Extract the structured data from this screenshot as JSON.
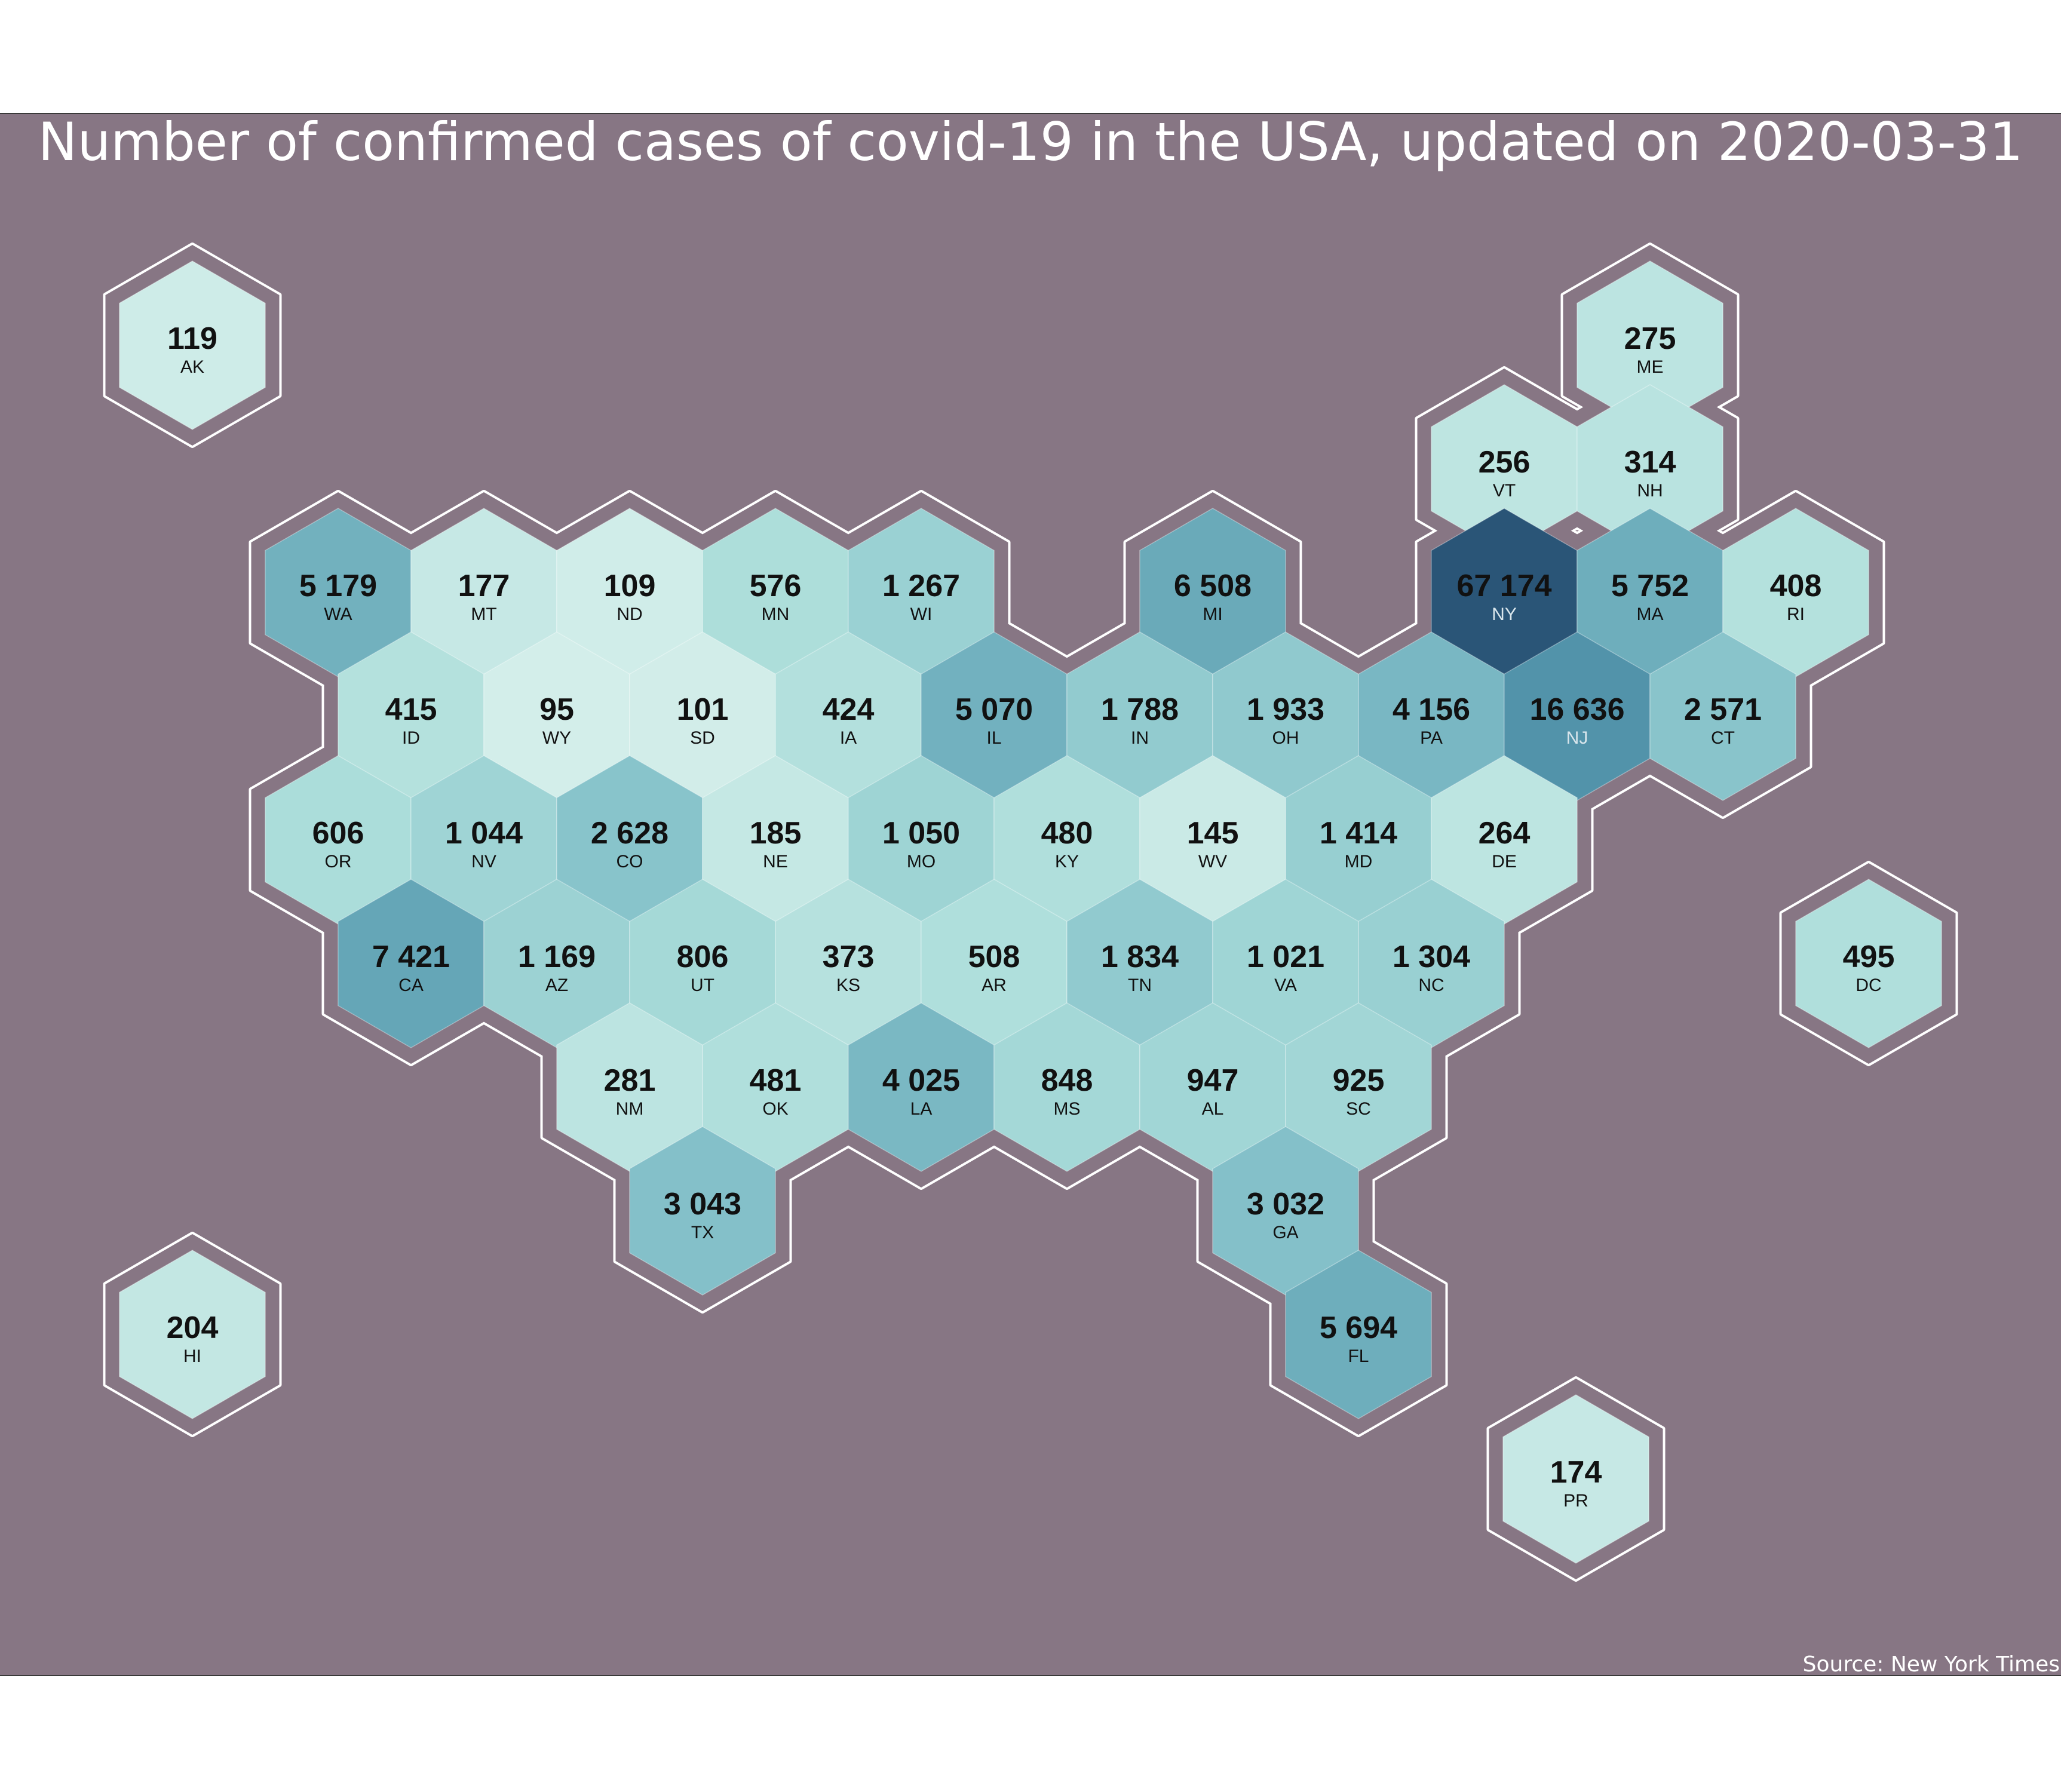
{
  "title": "Number of confirmed cases of covid-19 in the USA, updated on 2020-03-31",
  "source": "Source: New York Times",
  "colors": {
    "background": "#877684",
    "outline": "#ffffff",
    "scale_low": "#d3eeea",
    "scale_high": "#2a5577"
  },
  "map_data": {
    "type": "hexbin-map",
    "value_label": "confirmed cases",
    "states": [
      {
        "code": "AK",
        "value": 119,
        "label": "119"
      },
      {
        "code": "ME",
        "value": 275,
        "label": "275"
      },
      {
        "code": "VT",
        "value": 256,
        "label": "256"
      },
      {
        "code": "NH",
        "value": 314,
        "label": "314"
      },
      {
        "code": "WA",
        "value": 5179,
        "label": "5 179"
      },
      {
        "code": "MT",
        "value": 177,
        "label": "177"
      },
      {
        "code": "ND",
        "value": 109,
        "label": "109"
      },
      {
        "code": "MN",
        "value": 576,
        "label": "576"
      },
      {
        "code": "WI",
        "value": 1267,
        "label": "1 267"
      },
      {
        "code": "MI",
        "value": 6508,
        "label": "6 508"
      },
      {
        "code": "NY",
        "value": 67174,
        "label": "67 174"
      },
      {
        "code": "MA",
        "value": 5752,
        "label": "5 752"
      },
      {
        "code": "RI",
        "value": 408,
        "label": "408"
      },
      {
        "code": "ID",
        "value": 415,
        "label": "415"
      },
      {
        "code": "WY",
        "value": 95,
        "label": "95"
      },
      {
        "code": "SD",
        "value": 101,
        "label": "101"
      },
      {
        "code": "IA",
        "value": 424,
        "label": "424"
      },
      {
        "code": "IL",
        "value": 5070,
        "label": "5 070"
      },
      {
        "code": "IN",
        "value": 1788,
        "label": "1 788"
      },
      {
        "code": "OH",
        "value": 1933,
        "label": "1 933"
      },
      {
        "code": "PA",
        "value": 4156,
        "label": "4 156"
      },
      {
        "code": "NJ",
        "value": 16636,
        "label": "16 636"
      },
      {
        "code": "CT",
        "value": 2571,
        "label": "2 571"
      },
      {
        "code": "OR",
        "value": 606,
        "label": "606"
      },
      {
        "code": "NV",
        "value": 1044,
        "label": "1 044"
      },
      {
        "code": "CO",
        "value": 2628,
        "label": "2 628"
      },
      {
        "code": "NE",
        "value": 185,
        "label": "185"
      },
      {
        "code": "MO",
        "value": 1050,
        "label": "1 050"
      },
      {
        "code": "KY",
        "value": 480,
        "label": "480"
      },
      {
        "code": "WV",
        "value": 145,
        "label": "145"
      },
      {
        "code": "MD",
        "value": 1414,
        "label": "1 414"
      },
      {
        "code": "DE",
        "value": 264,
        "label": "264"
      },
      {
        "code": "CA",
        "value": 7421,
        "label": "7 421"
      },
      {
        "code": "AZ",
        "value": 1169,
        "label": "1 169"
      },
      {
        "code": "UT",
        "value": 806,
        "label": "806"
      },
      {
        "code": "KS",
        "value": 373,
        "label": "373"
      },
      {
        "code": "AR",
        "value": 508,
        "label": "508"
      },
      {
        "code": "TN",
        "value": 1834,
        "label": "1 834"
      },
      {
        "code": "VA",
        "value": 1021,
        "label": "1 021"
      },
      {
        "code": "NC",
        "value": 1304,
        "label": "1 304"
      },
      {
        "code": "DC",
        "value": 495,
        "label": "495"
      },
      {
        "code": "NM",
        "value": 281,
        "label": "281"
      },
      {
        "code": "OK",
        "value": 481,
        "label": "481"
      },
      {
        "code": "LA",
        "value": 4025,
        "label": "4 025"
      },
      {
        "code": "MS",
        "value": 848,
        "label": "848"
      },
      {
        "code": "AL",
        "value": 947,
        "label": "947"
      },
      {
        "code": "SC",
        "value": 925,
        "label": "925"
      },
      {
        "code": "TX",
        "value": 3043,
        "label": "3 043"
      },
      {
        "code": "GA",
        "value": 3032,
        "label": "3 032"
      },
      {
        "code": "HI",
        "value": 204,
        "label": "204"
      },
      {
        "code": "FL",
        "value": 5694,
        "label": "5 694"
      },
      {
        "code": "PR",
        "value": 174,
        "label": "174"
      }
    ]
  }
}
